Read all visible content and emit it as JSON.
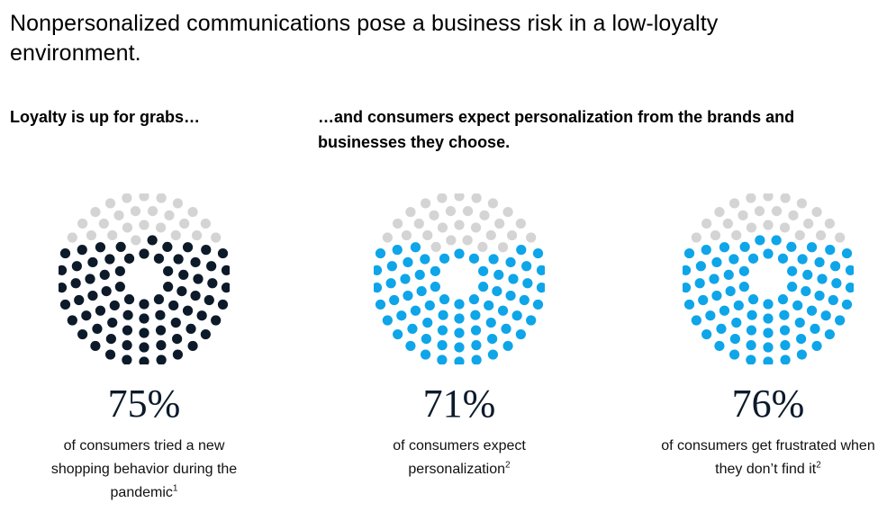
{
  "title": "Nonpersonalized communications pose a business risk in a low-loyalty environment.",
  "subtitle_left": "Loyalty is up for grabs…",
  "subtitle_right": "…and consumers expect personalization from the brands and businesses they choose.",
  "colors": {
    "filled_dark": "#0c1a2a",
    "filled_blue": "#0ea5e9",
    "empty": "#d4d4d4"
  },
  "chart_data": [
    {
      "type": "dot-matrix",
      "value": 75,
      "label": "75%",
      "description": "of consumers tried a new shopping behavior during the pandemic",
      "footnote": "1",
      "fill_color": "#0c1a2a"
    },
    {
      "type": "dot-matrix",
      "value": 71,
      "label": "71%",
      "description": "of consumers expect personalization",
      "footnote": "2",
      "fill_color": "#0ea5e9"
    },
    {
      "type": "dot-matrix",
      "value": 76,
      "label": "76%",
      "description": "of consumers get frustrated when they don’t find it",
      "footnote": "2",
      "fill_color": "#0ea5e9"
    }
  ]
}
